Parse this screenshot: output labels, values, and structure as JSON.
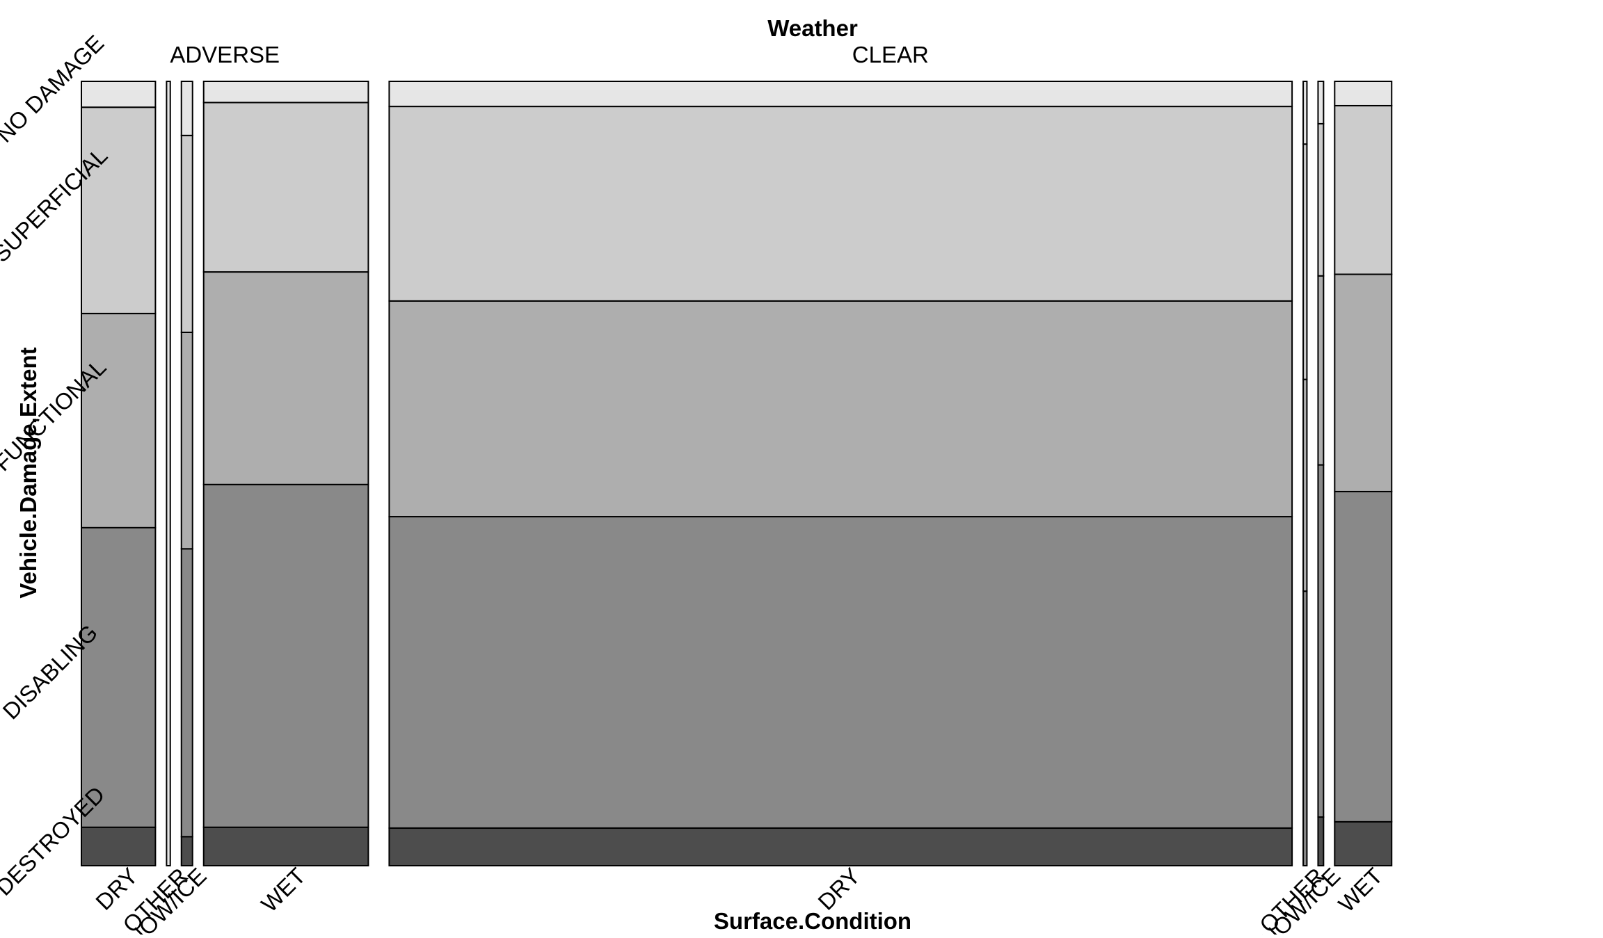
{
  "chart_data": {
    "type": "mosaic",
    "title": "Weather",
    "xlabel": "Surface.Condition",
    "ylabel": "Vehicle.Damage.Extent",
    "weather_levels": [
      "ADVERSE",
      "CLEAR"
    ],
    "surface_levels": [
      "DRY",
      "OTHER",
      "SNOW/ICE",
      "WET"
    ],
    "damage_levels_bottom_to_top": [
      "DESTROYED",
      "DISABLING",
      "FUNCTIONAL",
      "SUPERFICIAL",
      "NO DAMAGE"
    ],
    "damage_colors": [
      "#4d4d4d",
      "#898989",
      "#aeaeae",
      "#cccccc",
      "#e6e6e6"
    ],
    "cells": [
      {
        "weather": "ADVERSE",
        "surface": "DRY",
        "width_share": 0.0539,
        "damage_shares": [
          0.049,
          0.382,
          0.273,
          0.263,
          0.033
        ]
      },
      {
        "weather": "ADVERSE",
        "surface": "OTHER",
        "width_share": 0.0027,
        "damage_shares": [
          0.0,
          0.0,
          0.0,
          0.0,
          1.0
        ]
      },
      {
        "weather": "ADVERSE",
        "surface": "SNOW/ICE",
        "width_share": 0.0081,
        "damage_shares": [
          0.037,
          0.367,
          0.276,
          0.251,
          0.069
        ]
      },
      {
        "weather": "ADVERSE",
        "surface": "WET",
        "width_share": 0.1199,
        "damage_shares": [
          0.049,
          0.437,
          0.271,
          0.216,
          0.027
        ]
      },
      {
        "weather": "CLEAR",
        "surface": "DRY",
        "width_share": 0.6574,
        "damage_shares": [
          0.048,
          0.397,
          0.275,
          0.248,
          0.032
        ]
      },
      {
        "weather": "CLEAR",
        "surface": "OTHER",
        "width_share": 0.0027,
        "damage_shares": [
          0.0,
          0.35,
          0.27,
          0.3,
          0.08
        ]
      },
      {
        "weather": "CLEAR",
        "surface": "SNOW/ICE",
        "width_share": 0.004,
        "damage_shares": [
          0.062,
          0.449,
          0.241,
          0.194,
          0.054
        ]
      },
      {
        "weather": "CLEAR",
        "surface": "WET",
        "width_share": 0.0415,
        "damage_shares": [
          0.056,
          0.421,
          0.277,
          0.215,
          0.031
        ]
      }
    ]
  }
}
